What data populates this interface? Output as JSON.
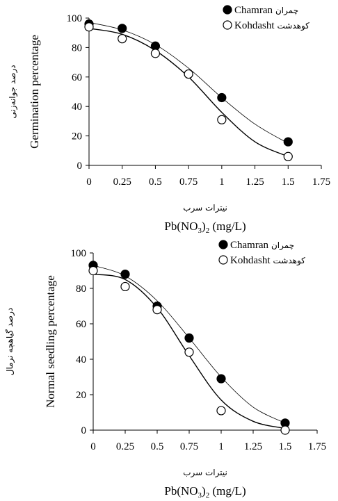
{
  "chart_data": [
    {
      "type": "scatter",
      "title": "",
      "xlabel_fa": "نیترات سرب",
      "xlabel": "Pb(NO3)2 (mg/L)",
      "ylabel_fa": "درصد جوانه‌زنی",
      "ylabel": "Germination percentage",
      "xlim": [
        0,
        1.75
      ],
      "ylim": [
        0,
        100
      ],
      "xticks": [
        "0",
        "0.25",
        "0.5",
        "0.75",
        "1",
        "1.25",
        "1.5",
        "1.75"
      ],
      "yticks": [
        "0",
        "20",
        "40",
        "60",
        "80",
        "100"
      ],
      "legend_position": "top-right",
      "series": [
        {
          "name": "Chamran",
          "name_fa": "چمران",
          "marker": "filled-circle",
          "x": [
            0,
            0.25,
            0.5,
            0.75,
            1,
            1.5
          ],
          "y": [
            96,
            93,
            81,
            62,
            46,
            16
          ],
          "fit": [
            {
              "x": 0,
              "y": 97
            },
            {
              "x": 0.25,
              "y": 92
            },
            {
              "x": 0.5,
              "y": 82
            },
            {
              "x": 0.75,
              "y": 66
            },
            {
              "x": 1,
              "y": 46
            },
            {
              "x": 1.25,
              "y": 28
            },
            {
              "x": 1.5,
              "y": 15
            }
          ]
        },
        {
          "name": "Kohdasht",
          "name_fa": "کوهدشت",
          "marker": "open-circle",
          "x": [
            0,
            0.25,
            0.5,
            0.75,
            1,
            1.5
          ],
          "y": [
            94,
            86,
            76,
            62,
            31,
            6
          ],
          "fit": [
            {
              "x": 0,
              "y": 93
            },
            {
              "x": 0.25,
              "y": 89
            },
            {
              "x": 0.5,
              "y": 78
            },
            {
              "x": 0.75,
              "y": 60
            },
            {
              "x": 1,
              "y": 36
            },
            {
              "x": 1.25,
              "y": 16
            },
            {
              "x": 1.5,
              "y": 6
            }
          ]
        }
      ]
    },
    {
      "type": "scatter",
      "title": "",
      "xlabel_fa": "نیترات سرب",
      "xlabel": "Pb(NO3)2 (mg/L)",
      "ylabel_fa": "درصد گیاهچه نرمال",
      "ylabel": "Normal seedling percentage",
      "xlim": [
        0,
        1.75
      ],
      "ylim": [
        0,
        100
      ],
      "xticks": [
        "0",
        "0.25",
        "0.5",
        "0.75",
        "1",
        "1.25",
        "1.5",
        "1.75"
      ],
      "yticks": [
        "0",
        "20",
        "40",
        "60",
        "80",
        "100"
      ],
      "legend_position": "top-right",
      "series": [
        {
          "name": "Chamran",
          "name_fa": "چمران",
          "marker": "filled-circle",
          "x": [
            0,
            0.25,
            0.5,
            0.75,
            1,
            1.5
          ],
          "y": [
            93,
            88,
            70,
            52,
            29,
            4
          ],
          "fit": [
            {
              "x": 0,
              "y": 93
            },
            {
              "x": 0.25,
              "y": 87
            },
            {
              "x": 0.5,
              "y": 73
            },
            {
              "x": 0.75,
              "y": 52
            },
            {
              "x": 1,
              "y": 30
            },
            {
              "x": 1.25,
              "y": 13
            },
            {
              "x": 1.5,
              "y": 4
            }
          ]
        },
        {
          "name": "Kohdasht",
          "name_fa": "کوهدشت",
          "marker": "open-circle",
          "x": [
            0,
            0.25,
            0.5,
            0.75,
            1,
            1.5
          ],
          "y": [
            90,
            81,
            68,
            44,
            11,
            0
          ],
          "fit": [
            {
              "x": 0,
              "y": 88
            },
            {
              "x": 0.25,
              "y": 85
            },
            {
              "x": 0.5,
              "y": 69
            },
            {
              "x": 0.75,
              "y": 42
            },
            {
              "x": 1,
              "y": 17
            },
            {
              "x": 1.25,
              "y": 5
            },
            {
              "x": 1.5,
              "y": 1
            }
          ]
        }
      ]
    }
  ]
}
